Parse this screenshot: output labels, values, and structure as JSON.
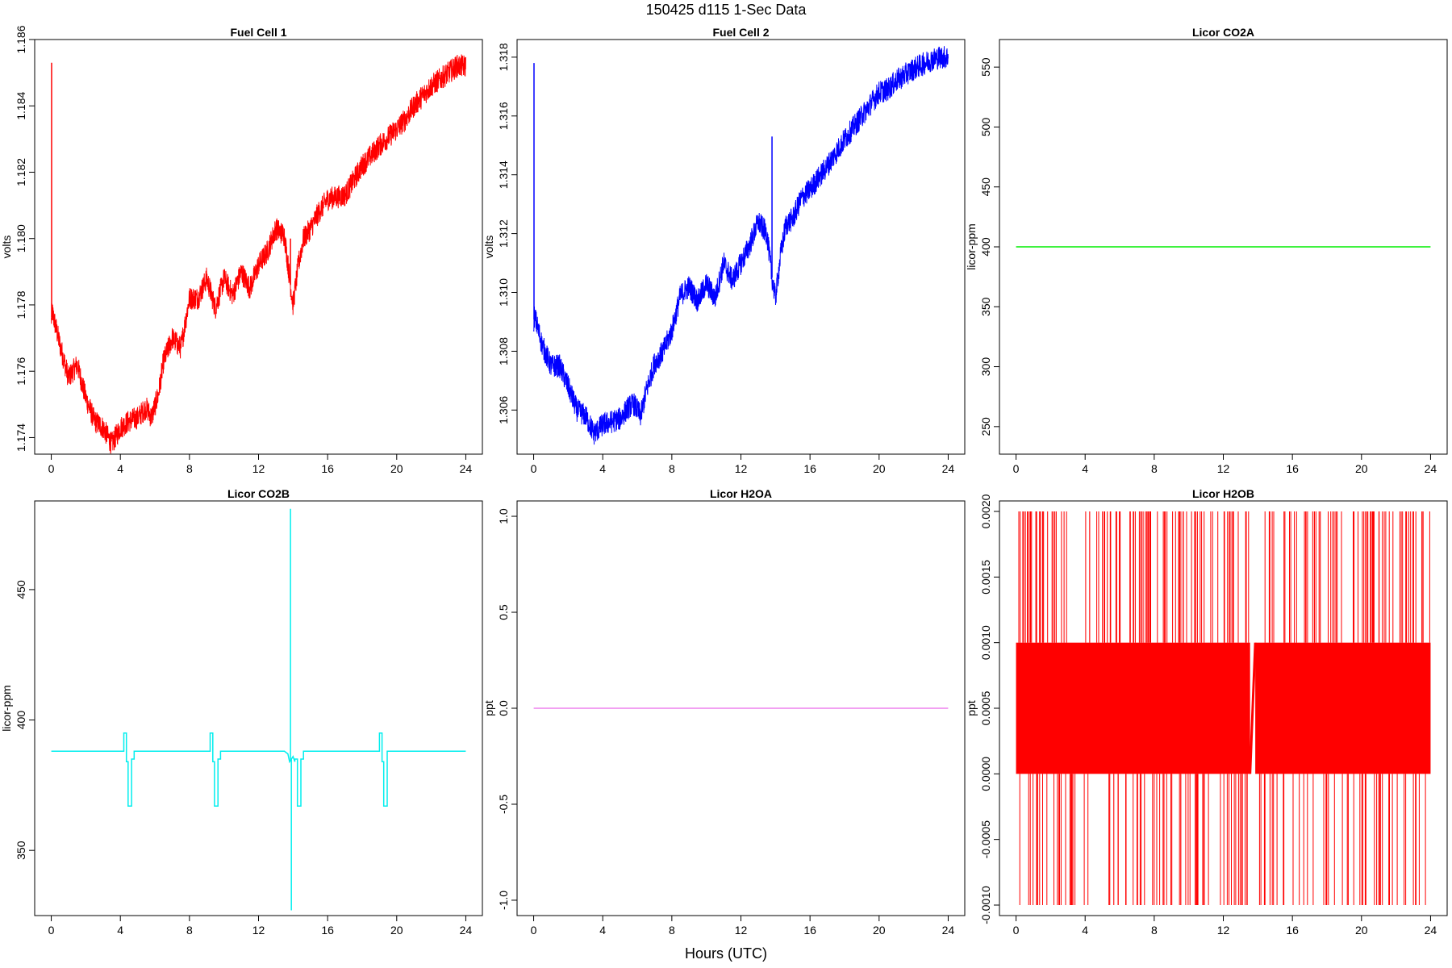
{
  "figure": {
    "title": "150425   d115   1-Sec Data",
    "xlabel": "Hours (UTC)"
  },
  "chart_data": [
    {
      "type": "line",
      "title": "Fuel Cell 1",
      "ylabel": "volts",
      "color": "#ff0000",
      "xlim": [
        0,
        24
      ],
      "ylim": [
        1.1735,
        1.186
      ],
      "xticks": [
        0,
        4,
        8,
        12,
        16,
        20,
        24
      ],
      "yticks": [
        1.174,
        1.176,
        1.178,
        1.18,
        1.182,
        1.184,
        1.186
      ],
      "ytick_decimals": 3,
      "noise": 0.00035,
      "spikes": [
        {
          "x": 0.02,
          "y": 1.1853
        },
        {
          "x": 13.85,
          "y": 1.18
        }
      ],
      "x": [
        0,
        0.05,
        0.5,
        1.0,
        1.5,
        2.0,
        2.5,
        3.0,
        3.5,
        4.0,
        4.5,
        5.0,
        5.5,
        5.8,
        6.2,
        6.5,
        7.0,
        7.5,
        8.0,
        8.5,
        9.0,
        9.5,
        10.0,
        10.5,
        11.0,
        11.5,
        12.0,
        12.5,
        13.0,
        13.5,
        13.8,
        14.0,
        14.3,
        14.6,
        15.0,
        15.5,
        16.0,
        17.0,
        18.0,
        19.0,
        20.0,
        20.5,
        21.0,
        22.0,
        23.0,
        23.5,
        24.0
      ],
      "y": [
        1.1775,
        1.1778,
        1.1768,
        1.1758,
        1.1762,
        1.1752,
        1.1745,
        1.1743,
        1.1738,
        1.1743,
        1.1745,
        1.1746,
        1.1749,
        1.1746,
        1.1753,
        1.1763,
        1.177,
        1.1767,
        1.1782,
        1.1782,
        1.1788,
        1.1779,
        1.1788,
        1.1783,
        1.179,
        1.1785,
        1.1792,
        1.1796,
        1.1803,
        1.1801,
        1.1788,
        1.178,
        1.1792,
        1.18,
        1.1803,
        1.1808,
        1.1812,
        1.1813,
        1.1822,
        1.1828,
        1.1833,
        1.1836,
        1.184,
        1.1846,
        1.185,
        1.1852,
        1.1852
      ]
    },
    {
      "type": "line",
      "title": "Fuel Cell 2",
      "ylabel": "volts",
      "color": "#0000ff",
      "xlim": [
        0,
        24
      ],
      "ylim": [
        1.3045,
        1.3186
      ],
      "xticks": [
        0,
        4,
        8,
        12,
        16,
        20,
        24
      ],
      "yticks": [
        1.306,
        1.308,
        1.31,
        1.312,
        1.314,
        1.316,
        1.318
      ],
      "ytick_decimals": 3,
      "noise": 0.0004,
      "spikes": [
        {
          "x": 0.02,
          "y": 1.3178
        },
        {
          "x": 13.8,
          "y": 1.3153
        }
      ],
      "x": [
        0,
        0.05,
        0.5,
        1.0,
        1.5,
        2.0,
        2.5,
        3.0,
        3.5,
        4.0,
        4.5,
        5.0,
        5.5,
        5.8,
        6.2,
        6.5,
        7.0,
        7.5,
        8.0,
        8.5,
        9.0,
        9.5,
        10.0,
        10.5,
        11.0,
        11.5,
        12.0,
        12.5,
        13.0,
        13.5,
        13.8,
        14.0,
        14.3,
        14.6,
        15.0,
        15.5,
        16.0,
        17.0,
        18.0,
        19.0,
        20.0,
        20.5,
        21.0,
        22.0,
        23.0,
        23.5,
        24.0
      ],
      "y": [
        1.309,
        1.3092,
        1.3082,
        1.3075,
        1.3075,
        1.3068,
        1.306,
        1.3058,
        1.3052,
        1.3055,
        1.3056,
        1.3057,
        1.3061,
        1.3062,
        1.3058,
        1.3066,
        1.3076,
        1.308,
        1.3087,
        1.3099,
        1.3102,
        1.3097,
        1.3103,
        1.3098,
        1.311,
        1.3104,
        1.311,
        1.3116,
        1.3124,
        1.312,
        1.3105,
        1.3098,
        1.3113,
        1.3123,
        1.3125,
        1.3132,
        1.3135,
        1.3143,
        1.3152,
        1.316,
        1.3168,
        1.3169,
        1.3172,
        1.3176,
        1.3179,
        1.318,
        1.318
      ]
    },
    {
      "type": "line",
      "title": "Licor CO2A",
      "ylabel": "licor-ppm",
      "color": "#00ee00",
      "xlim": [
        0,
        24
      ],
      "ylim": [
        227,
        573
      ],
      "xticks": [
        0,
        4,
        8,
        12,
        16,
        20,
        24
      ],
      "yticks": [
        250,
        300,
        350,
        400,
        450,
        500,
        550
      ],
      "ytick_decimals": 0,
      "noise": 0,
      "spikes": [],
      "x": [
        0,
        24
      ],
      "y": [
        400,
        400
      ]
    },
    {
      "type": "line",
      "title": "Licor CO2B",
      "ylabel": "licor-ppm",
      "color": "#00eeee",
      "xlim": [
        0,
        24
      ],
      "ylim": [
        325,
        484
      ],
      "xticks": [
        0,
        4,
        8,
        12,
        16,
        20,
        24
      ],
      "yticks": [
        350,
        400,
        450
      ],
      "ytick_decimals": 0,
      "noise": 0,
      "spikes": [
        {
          "x": 13.85,
          "y": 481
        },
        {
          "x": 13.9,
          "y": 327
        }
      ],
      "x": [
        0,
        4.2,
        4.2,
        4.35,
        4.35,
        4.45,
        4.45,
        4.65,
        4.65,
        4.8,
        4.8,
        9.2,
        9.2,
        9.35,
        9.35,
        9.45,
        9.45,
        9.65,
        9.65,
        9.8,
        9.8,
        13.5,
        13.7,
        13.8,
        14.0,
        14.1,
        14.1,
        14.25,
        14.25,
        14.45,
        14.45,
        14.6,
        14.6,
        19.0,
        19.0,
        19.15,
        19.15,
        19.25,
        19.25,
        19.45,
        19.45,
        24.0
      ],
      "y": [
        388,
        388,
        395,
        395,
        384,
        384,
        367,
        367,
        385,
        385,
        388,
        388,
        395,
        395,
        384,
        384,
        367,
        367,
        385,
        385,
        388,
        388,
        387,
        384,
        386,
        384,
        385,
        385,
        367,
        367,
        385,
        385,
        388,
        388,
        395,
        395,
        384,
        384,
        367,
        367,
        388,
        388
      ]
    },
    {
      "type": "line",
      "title": "Licor H2OA",
      "ylabel": "ppt",
      "color": "#ee82ee",
      "xlim": [
        0,
        24
      ],
      "ylim": [
        -1.08,
        1.08
      ],
      "xticks": [
        0,
        4,
        8,
        12,
        16,
        20,
        24
      ],
      "yticks": [
        -1.0,
        -0.5,
        0.0,
        0.5,
        1.0
      ],
      "ytick_decimals": 1,
      "noise": 0,
      "spikes": [],
      "x": [
        0,
        24
      ],
      "y": [
        0,
        0
      ]
    },
    {
      "type": "line",
      "title": "Licor H2OB",
      "ylabel": "ppt",
      "color": "#ff0000",
      "xlim": [
        0,
        24
      ],
      "ylim": [
        -0.00108,
        0.00208
      ],
      "xticks": [
        0,
        4,
        8,
        12,
        16,
        20,
        24
      ],
      "yticks": [
        -0.001,
        -0.0005,
        0.0,
        0.0005,
        0.001,
        0.0015,
        0.002
      ],
      "ytick_decimals": 4,
      "noise": 0,
      "spikes": [],
      "band": {
        "low": 0.0,
        "high": 0.001,
        "gap": [
          13.55,
          13.85
        ]
      },
      "spike_high": 0.002,
      "spike_low": -0.001,
      "x": [
        0,
        24
      ],
      "y": [
        0.001,
        0.0
      ]
    }
  ]
}
